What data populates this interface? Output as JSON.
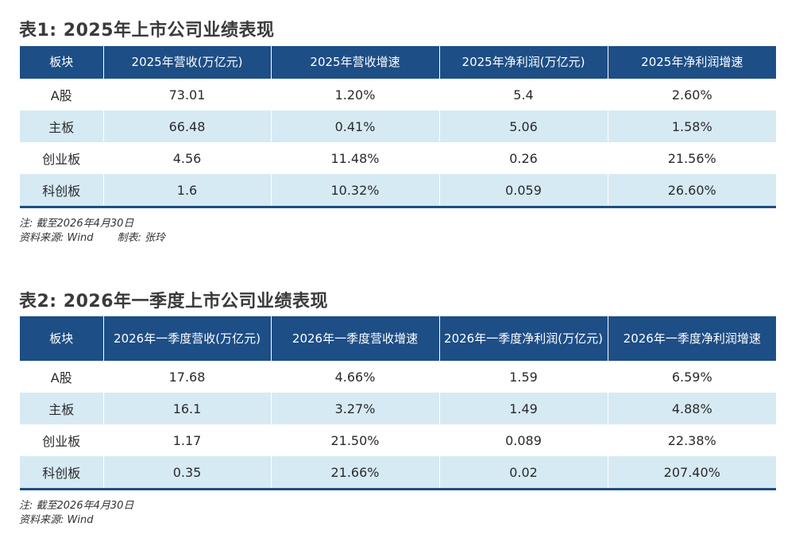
{
  "table1": {
    "title": "表1: 2025年上市公司业绩表现",
    "headers": [
      "板块",
      "2025年营收(万亿元)",
      "2025年营收增速",
      "2025年净利润(万亿元)",
      "2025年净利润增速"
    ],
    "rows": [
      [
        "A股",
        "73.01",
        "1.20%",
        "5.4",
        "2.60%"
      ],
      [
        "主板",
        "66.48",
        "0.41%",
        "5.06",
        "1.58%"
      ],
      [
        "创业板",
        "4.56",
        "11.48%",
        "0.26",
        "21.56%"
      ],
      [
        "科创板",
        "1.6",
        "10.32%",
        "0.059",
        "26.60%"
      ]
    ],
    "note": "注: 截至2026年4月30日",
    "source": "资料来源: Wind",
    "maker": "制表: 张玲"
  },
  "table2": {
    "title": "表2: 2026年一季度上市公司业绩表现",
    "headers": [
      "板块",
      "2026年一季度营收(万亿元)",
      "2026年一季度营收增速",
      "2026年一季度净利润(万亿元)",
      "2026年一季度净利润增速"
    ],
    "rows": [
      [
        "A股",
        "17.68",
        "4.66%",
        "1.59",
        "6.59%"
      ],
      [
        "主板",
        "16.1",
        "3.27%",
        "1.49",
        "4.88%"
      ],
      [
        "创业板",
        "1.17",
        "21.50%",
        "0.089",
        "22.38%"
      ],
      [
        "科创板",
        "0.35",
        "21.66%",
        "0.02",
        "207.40%"
      ]
    ],
    "note": "注: 截至2026年4月30日",
    "source": "资料来源: Wind"
  },
  "colors": {
    "header_bg": "#1d4e86",
    "stripe_bg": "#d6eaf4",
    "title_text": "#3a3a3a"
  }
}
